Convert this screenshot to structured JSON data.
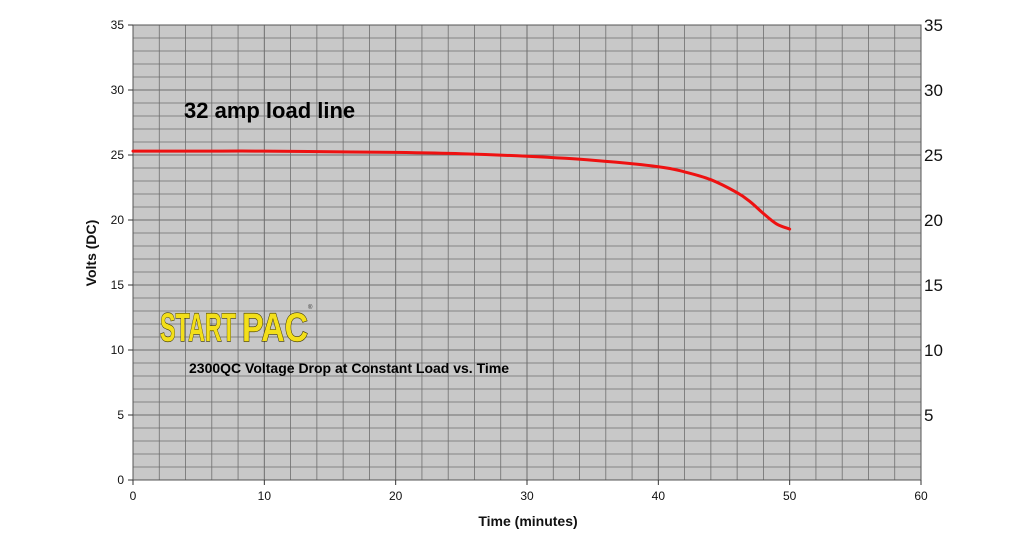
{
  "chart_data": {
    "type": "line",
    "title": "",
    "xlabel": "Time (minutes)",
    "ylabel": "Volts (DC)",
    "xlim": [
      0,
      60
    ],
    "ylim": [
      0,
      35
    ],
    "x_ticks": [
      0,
      10,
      20,
      30,
      40,
      50,
      60
    ],
    "y_ticks_left": [
      0,
      5,
      10,
      15,
      20,
      25,
      30,
      35
    ],
    "y_ticks_right": [
      5,
      10,
      15,
      20,
      25,
      30,
      35
    ],
    "grid": true,
    "series": [
      {
        "name": "",
        "color": "#ee1111",
        "x": [
          0,
          5,
          10,
          15,
          20,
          25,
          30,
          35,
          40,
          42,
          44,
          46,
          47,
          48,
          49,
          50
        ],
        "y": [
          25.3,
          25.3,
          25.3,
          25.25,
          25.2,
          25.1,
          24.9,
          24.6,
          24.1,
          23.7,
          23.1,
          22.1,
          21.4,
          20.5,
          19.7,
          19.3
        ]
      }
    ],
    "annotations": {
      "load_line_label": "32 amp load line",
      "subtitle": "2300QC Voltage Drop at Constant Load vs. Time"
    },
    "plot_background": "#c8c8c8",
    "grid_color": "#6e6e6e"
  },
  "logo": {
    "text_start": "START",
    "text_pac": "PAC",
    "registered": "®",
    "color": "#f3df1a"
  }
}
